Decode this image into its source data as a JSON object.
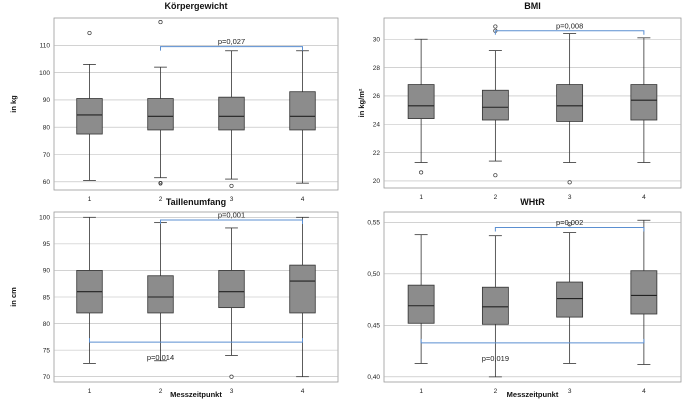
{
  "colors": {
    "box_fill": "#8c8c8c",
    "box_stroke": "#333333",
    "grid": "#b8b8b8",
    "bracket": "#5b8fd1",
    "frame": "#9a9a9a",
    "text": "#111111"
  },
  "chart_data": [
    {
      "id": "koerpergewicht",
      "type": "box",
      "title": "Körpergewicht",
      "xlabel": "",
      "ylabel": "in kg",
      "categories": [
        "1",
        "2",
        "3",
        "4"
      ],
      "ylim": [
        57,
        120
      ],
      "yticks": [
        60,
        70,
        80,
        90,
        100,
        110
      ],
      "ytick_labels": [
        "60",
        "70",
        "80",
        "90",
        "100",
        "110"
      ],
      "boxes": [
        {
          "whisker_low": 60.5,
          "q1": 77.5,
          "median": 84.5,
          "q3": 90.5,
          "whisker_high": 103
        },
        {
          "whisker_low": 61.5,
          "q1": 79,
          "median": 84,
          "q3": 90.5,
          "whisker_high": 102
        },
        {
          "whisker_low": 61,
          "q1": 79,
          "median": 84,
          "q3": 91,
          "whisker_high": 108
        },
        {
          "whisker_low": 59.5,
          "q1": 79,
          "median": 84,
          "q3": 93,
          "whisker_high": 108
        }
      ],
      "outliers": [
        {
          "category_index": 0,
          "value": 114.5,
          "label": ""
        },
        {
          "category_index": 1,
          "value": 118.5,
          "label": ""
        },
        {
          "category_index": 1,
          "value": 59.5,
          "label": "8"
        },
        {
          "category_index": 2,
          "value": 58.5,
          "label": ""
        }
      ],
      "annotations": [
        {
          "from_index": 1,
          "to_index": 3,
          "value": 109.5,
          "side": "above",
          "text": "p=0,027",
          "text_anchor_index": 2
        }
      ]
    },
    {
      "id": "bmi",
      "type": "box",
      "title": "BMI",
      "xlabel": "",
      "ylabel": "in kg/m²",
      "categories": [
        "1",
        "2",
        "3",
        "4"
      ],
      "ylim": [
        19.5,
        31.5
      ],
      "yticks": [
        20,
        22,
        24,
        26,
        28,
        30
      ],
      "ytick_labels": [
        "20",
        "22",
        "24",
        "26",
        "28",
        "30"
      ],
      "boxes": [
        {
          "whisker_low": 21.3,
          "q1": 24.4,
          "median": 25.3,
          "q3": 26.8,
          "whisker_high": 30
        },
        {
          "whisker_low": 21.4,
          "q1": 24.3,
          "median": 25.2,
          "q3": 26.4,
          "whisker_high": 29.2
        },
        {
          "whisker_low": 21.3,
          "q1": 24.2,
          "median": 25.3,
          "q3": 26.8,
          "whisker_high": 30.4
        },
        {
          "whisker_low": 21.3,
          "q1": 24.3,
          "median": 25.7,
          "q3": 26.8,
          "whisker_high": 30.1
        }
      ],
      "outliers": [
        {
          "category_index": 0,
          "value": 20.6,
          "label": ""
        },
        {
          "category_index": 1,
          "value": 30.9,
          "label": ""
        },
        {
          "category_index": 1,
          "value": 30.6,
          "label": ""
        },
        {
          "category_index": 1,
          "value": 20.4,
          "label": ""
        },
        {
          "category_index": 2,
          "value": 19.9,
          "label": ""
        }
      ],
      "annotations": [
        {
          "from_index": 1,
          "to_index": 3,
          "value": 30.6,
          "side": "above",
          "text": "p=0,008",
          "text_anchor_index": 2
        }
      ]
    },
    {
      "id": "taillenumfang",
      "type": "box",
      "title": "Taillenumfang",
      "xlabel": "Messzeitpunkt",
      "ylabel": "in cm",
      "categories": [
        "1",
        "2",
        "3",
        "4"
      ],
      "ylim": [
        69,
        101
      ],
      "yticks": [
        70,
        75,
        80,
        85,
        90,
        95,
        100
      ],
      "ytick_labels": [
        "70",
        "75",
        "80",
        "85",
        "90",
        "95",
        "100"
      ],
      "boxes": [
        {
          "whisker_low": 72.5,
          "q1": 82,
          "median": 86,
          "q3": 90,
          "whisker_high": 100
        },
        {
          "whisker_low": 73,
          "q1": 82,
          "median": 85,
          "q3": 89,
          "whisker_high": 99
        },
        {
          "whisker_low": 74,
          "q1": 83,
          "median": 86,
          "q3": 90,
          "whisker_high": 98
        },
        {
          "whisker_low": 70,
          "q1": 82,
          "median": 88,
          "q3": 91,
          "whisker_high": 100
        }
      ],
      "outliers": [
        {
          "category_index": 2,
          "value": 70,
          "label": ""
        }
      ],
      "annotations": [
        {
          "from_index": 1,
          "to_index": 3,
          "value": 99.5,
          "side": "above",
          "text": "p=0,001",
          "text_anchor_index": 2
        },
        {
          "from_index": 0,
          "to_index": 3,
          "value": 76.5,
          "side": "below",
          "text": "p=0,014",
          "text_anchor_index": 1
        }
      ]
    },
    {
      "id": "whtr",
      "type": "box",
      "title": "WHtR",
      "xlabel": "Messzeitpunkt",
      "ylabel": "",
      "categories": [
        "1",
        "2",
        "3",
        "4"
      ],
      "ylim": [
        0.395,
        0.56
      ],
      "yticks": [
        0.4,
        0.45,
        0.5,
        0.55
      ],
      "ytick_labels": [
        "0,40",
        "0,45",
        "0,50",
        "0,55"
      ],
      "boxes": [
        {
          "whisker_low": 0.413,
          "q1": 0.452,
          "median": 0.469,
          "q3": 0.489,
          "whisker_high": 0.538
        },
        {
          "whisker_low": 0.4,
          "q1": 0.451,
          "median": 0.468,
          "q3": 0.487,
          "whisker_high": 0.537
        },
        {
          "whisker_low": 0.413,
          "q1": 0.458,
          "median": 0.476,
          "q3": 0.492,
          "whisker_high": 0.54
        },
        {
          "whisker_low": 0.412,
          "q1": 0.461,
          "median": 0.479,
          "q3": 0.503,
          "whisker_high": 0.552
        }
      ],
      "outliers": [
        {
          "category_index": 2,
          "value": 0.548,
          "label": ""
        }
      ],
      "annotations": [
        {
          "from_index": 1,
          "to_index": 3,
          "value": 0.545,
          "side": "above",
          "text": "p=0,002",
          "text_anchor_index": 2
        },
        {
          "from_index": 0,
          "to_index": 3,
          "value": 0.433,
          "side": "below",
          "text": "p=0,019",
          "text_anchor_index": 1
        }
      ]
    }
  ]
}
